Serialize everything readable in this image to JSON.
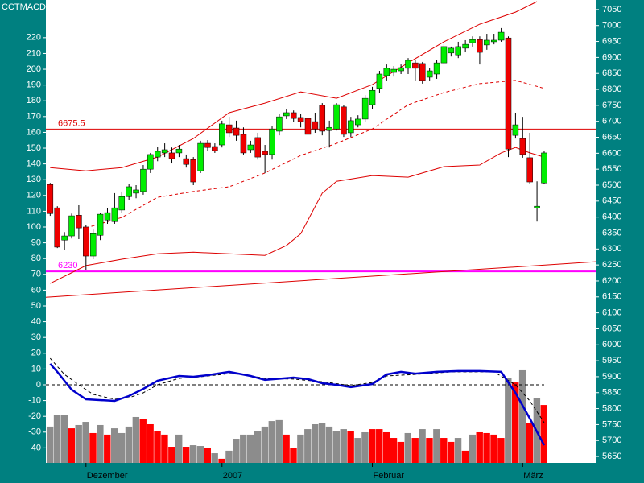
{
  "chart_data": {
    "type": "candlestick",
    "title": "CCTMACDC",
    "up_color": "#00ee00",
    "down_color": "#ee0000",
    "ohlc": [
      [
        6502,
        6507,
        6404,
        6411
      ],
      [
        6429,
        6434,
        6303,
        6306
      ],
      [
        6328,
        6353,
        6298,
        6341
      ],
      [
        6341,
        6411,
        6333,
        6404
      ],
      [
        6406,
        6437,
        6331,
        6366
      ],
      [
        6369,
        6374,
        6235,
        6278
      ],
      [
        6278,
        6361,
        6268,
        6348
      ],
      [
        6343,
        6414,
        6328,
        6409
      ],
      [
        6391,
        6429,
        6379,
        6414
      ],
      [
        6386,
        6475,
        6379,
        6429
      ],
      [
        6422,
        6480,
        6414,
        6464
      ],
      [
        6464,
        6505,
        6454,
        6495
      ],
      [
        6475,
        6500,
        6459,
        6485
      ],
      [
        6480,
        6563,
        6470,
        6550
      ],
      [
        6550,
        6601,
        6538,
        6596
      ],
      [
        6588,
        6621,
        6575,
        6606
      ],
      [
        6601,
        6631,
        6588,
        6611
      ],
      [
        6601,
        6618,
        6568,
        6583
      ],
      [
        6601,
        6626,
        6588,
        6613
      ],
      [
        6583,
        6596,
        6555,
        6565
      ],
      [
        6580,
        6588,
        6500,
        6510
      ],
      [
        6545,
        6639,
        6538,
        6631
      ],
      [
        6631,
        6641,
        6606,
        6618
      ],
      [
        6621,
        6631,
        6601,
        6608
      ],
      [
        6626,
        6702,
        6618,
        6692
      ],
      [
        6689,
        6714,
        6651,
        6664
      ],
      [
        6679,
        6702,
        6639,
        6656
      ],
      [
        6659,
        6681,
        6596,
        6601
      ],
      [
        6611,
        6639,
        6601,
        6626
      ],
      [
        6649,
        6664,
        6580,
        6588
      ],
      [
        6606,
        6626,
        6538,
        6596
      ],
      [
        6596,
        6684,
        6580,
        6676
      ],
      [
        6669,
        6722,
        6656,
        6714
      ],
      [
        6717,
        6739,
        6707,
        6727
      ],
      [
        6727,
        6734,
        6697,
        6709
      ],
      [
        6712,
        6722,
        6681,
        6699
      ],
      [
        6709,
        6727,
        6646,
        6659
      ],
      [
        6699,
        6727,
        6664,
        6676
      ],
      [
        6750,
        6757,
        6656,
        6669
      ],
      [
        6671,
        6702,
        6618,
        6681
      ],
      [
        6676,
        6757,
        6671,
        6752
      ],
      [
        6745,
        6752,
        6651,
        6659
      ],
      [
        6664,
        6714,
        6651,
        6702
      ],
      [
        6689,
        6719,
        6681,
        6707
      ],
      [
        6707,
        6782,
        6697,
        6772
      ],
      [
        6752,
        6808,
        6739,
        6797
      ],
      [
        6803,
        6858,
        6790,
        6848
      ],
      [
        6843,
        6878,
        6828,
        6866
      ],
      [
        6853,
        6873,
        6840,
        6863
      ],
      [
        6858,
        6878,
        6848,
        6868
      ],
      [
        6866,
        6898,
        6848,
        6891
      ],
      [
        6883,
        6891,
        6828,
        6866
      ],
      [
        6881,
        6886,
        6818,
        6828
      ],
      [
        6838,
        6866,
        6828,
        6858
      ],
      [
        6848,
        6891,
        6833,
        6883
      ],
      [
        6883,
        6941,
        6878,
        6934
      ],
      [
        6914,
        6934,
        6903,
        6929
      ],
      [
        6908,
        6949,
        6898,
        6934
      ],
      [
        6929,
        6954,
        6916,
        6941
      ],
      [
        6946,
        6966,
        6934,
        6956
      ],
      [
        6956,
        6966,
        6878,
        6916
      ],
      [
        6939,
        6974,
        6924,
        6954
      ],
      [
        6949,
        6974,
        6941,
        6954
      ],
      [
        6954,
        6992,
        6949,
        6979
      ],
      [
        6961,
        6966,
        6588,
        6613
      ],
      [
        6656,
        6727,
        6646,
        6689
      ],
      [
        6646,
        6714,
        6586,
        6596
      ],
      [
        6586,
        6664,
        6505,
        6510
      ],
      [
        6429,
        6512,
        6386,
        6434
      ],
      [
        6507,
        6606,
        6505,
        6601
      ]
    ],
    "xlim": [
      -0.6,
      76.2
    ],
    "xticks": [
      {
        "value": 5,
        "label": "Dezember"
      },
      {
        "value": 24,
        "label": "2007"
      },
      {
        "value": 45,
        "label": "Februar"
      },
      {
        "value": 66,
        "label": "März"
      }
    ],
    "ylim": [
      5630,
      7080
    ],
    "yticks": [
      7050,
      7000,
      6950,
      6900,
      6850,
      6800,
      6750,
      6700,
      6650,
      6600,
      6550,
      6500,
      6450,
      6400,
      6350,
      6300,
      6250,
      6200,
      6150,
      6100,
      6050,
      6000,
      5950,
      5900,
      5850,
      5800,
      5750,
      5700,
      5650
    ],
    "y2lim": [
      -49.5,
      243.9
    ],
    "y2ticks": [
      220,
      210,
      200,
      190,
      180,
      170,
      160,
      150,
      140,
      130,
      120,
      110,
      100,
      90,
      80,
      70,
      60,
      50,
      40,
      30,
      20,
      10,
      0,
      -10,
      -20,
      -30,
      -40
    ],
    "bands": [
      {
        "color": "#dd0000",
        "dashed": false,
        "x": [
          0,
          5,
          10,
          15,
          20,
          25,
          30,
          35,
          40,
          45,
          50,
          55,
          60,
          65,
          68
        ],
        "values": [
          6555,
          6545,
          6555,
          6588,
          6646,
          6727,
          6757,
          6792,
          6772,
          6815,
          6883,
          6949,
          7004,
          7042,
          7075
        ]
      },
      {
        "color": "#dd0000",
        "dashed": true,
        "x": [
          5,
          10,
          15,
          20,
          25,
          30,
          35,
          40,
          45,
          50,
          55,
          60,
          65,
          69
        ],
        "values": [
          6366,
          6399,
          6462,
          6480,
          6495,
          6538,
          6593,
          6631,
          6676,
          6752,
          6790,
          6818,
          6828,
          6803
        ]
      },
      {
        "color": "#dd0000",
        "dashed": false,
        "x": [
          0,
          5,
          10,
          15,
          20,
          25,
          30,
          33,
          35,
          38,
          40,
          45,
          50,
          55,
          60,
          63,
          65,
          67,
          69
        ],
        "values": [
          6192,
          6248,
          6268,
          6285,
          6290,
          6285,
          6280,
          6311,
          6348,
          6475,
          6512,
          6530,
          6525,
          6558,
          6563,
          6601,
          6618,
          6601,
          6588
        ]
      }
    ],
    "trendline": {
      "color": "#dd0000",
      "values": [
        6149,
        6260
      ]
    },
    "hlines": [
      {
        "value": 6675.5,
        "color": "#dd0000",
        "width": 1
      },
      {
        "value": 6230,
        "color": "#ff00ff",
        "width": 2
      }
    ],
    "macd": {
      "axis": "y2",
      "color": "#0000cc",
      "x": [
        0,
        1,
        3,
        5,
        9,
        11,
        13,
        15,
        18,
        20,
        22,
        25,
        28,
        30,
        34,
        36,
        38,
        40,
        42,
        45,
        47,
        49,
        51,
        54,
        57,
        60,
        63,
        64,
        65,
        67,
        69
      ],
      "values": [
        13.3,
        8.2,
        -3.1,
        -9.2,
        -10.2,
        -7.1,
        -2.6,
        2.6,
        5.6,
        5.1,
        6.1,
        8.2,
        5.6,
        3.1,
        4.6,
        3.6,
        1,
        0,
        -1.5,
        0.5,
        6.6,
        8.2,
        7.1,
        8.2,
        8.7,
        8.7,
        8.2,
        1.5,
        -5.1,
        -21.4,
        -38.3
      ]
    },
    "signal": {
      "axis": "y2",
      "color": "#000000",
      "x": [
        0,
        2,
        4,
        6,
        9,
        11,
        13,
        15,
        18,
        21,
        25,
        27,
        30,
        34,
        38,
        42,
        45,
        47,
        51,
        56,
        62,
        65,
        67,
        69
      ],
      "values": [
        16.8,
        6.6,
        0,
        -6.1,
        -9.2,
        -8.2,
        -5.1,
        0,
        4.1,
        5.1,
        7.1,
        6.6,
        4.1,
        3.6,
        2,
        -0.5,
        1.5,
        5.6,
        6.6,
        8.2,
        8.2,
        0,
        -10.2,
        -24
      ]
    },
    "histogram": {
      "axis": "y2",
      "colors": [
        "#8c8c8c",
        "#ff0000"
      ],
      "color_index": [
        0,
        0,
        0,
        1,
        0,
        0,
        1,
        0,
        1,
        0,
        0,
        0,
        0,
        1,
        1,
        1,
        1,
        1,
        0,
        1,
        0,
        0,
        1,
        0,
        1,
        0,
        0,
        0,
        0,
        0,
        0,
        0,
        0,
        1,
        1,
        0,
        0,
        0,
        0,
        0,
        0,
        0,
        1,
        0,
        0,
        1,
        1,
        1,
        1,
        1,
        0,
        1,
        0,
        1,
        0,
        1,
        1,
        0,
        1,
        0,
        1,
        1,
        1,
        1,
        0,
        1,
        0,
        1,
        0,
        1
      ],
      "values": [
        -26.5,
        -18.9,
        -18.9,
        -27.6,
        -25.5,
        -23.5,
        -30.6,
        -25.5,
        -31.6,
        -27.6,
        -30.6,
        -26.5,
        -20.4,
        -21.9,
        -25,
        -29.6,
        -31.6,
        -39.3,
        -31.6,
        -39.3,
        -38.3,
        -38.8,
        -39.8,
        -43.4,
        -46.9,
        -41.8,
        -34.2,
        -31.6,
        -31.6,
        -29.6,
        -26.5,
        -23,
        -22.4,
        -31.6,
        -40.3,
        -31.6,
        -28.1,
        -25,
        -24,
        -26.5,
        -29.1,
        -28.1,
        -29.1,
        -33.7,
        -30.1,
        -28.1,
        -28.1,
        -30.1,
        -33.7,
        -36.2,
        -30.6,
        -33.7,
        -28.1,
        -33.7,
        -28.1,
        -33.7,
        -36.2,
        -33.7,
        -41.8,
        -31.6,
        -30.1,
        -30.6,
        -31.6,
        -33.7,
        4.1,
        1.5,
        9.2,
        -24,
        -8.2,
        -12.8
      ]
    }
  }
}
